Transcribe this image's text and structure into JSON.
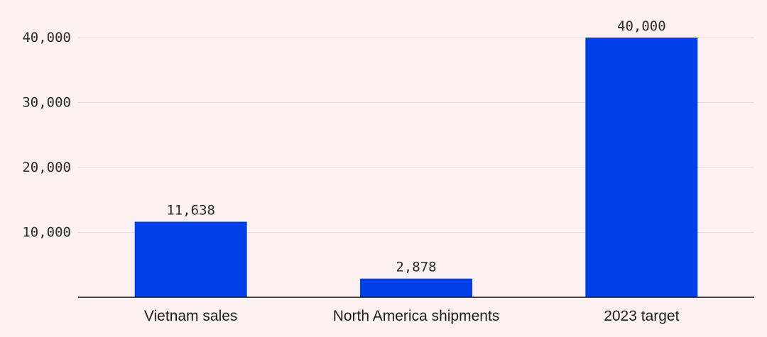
{
  "chart_data": {
    "type": "bar",
    "title": "",
    "xlabel": "",
    "ylabel": "",
    "categories": [
      "Vietnam sales",
      "North America shipments",
      "2023 target"
    ],
    "values": [
      11638,
      2878,
      40000
    ],
    "value_labels": [
      "11,638",
      "2,878",
      "40,000"
    ],
    "ylim": [
      0,
      40000
    ],
    "y_ticks": [
      10000,
      20000,
      30000,
      40000
    ],
    "y_tick_labels": [
      "10,000",
      "20,000",
      "30,000",
      "40,000"
    ],
    "grid": true,
    "legend": "none",
    "bar_color": "#0040e8",
    "background_color": "#fdf1f1"
  }
}
